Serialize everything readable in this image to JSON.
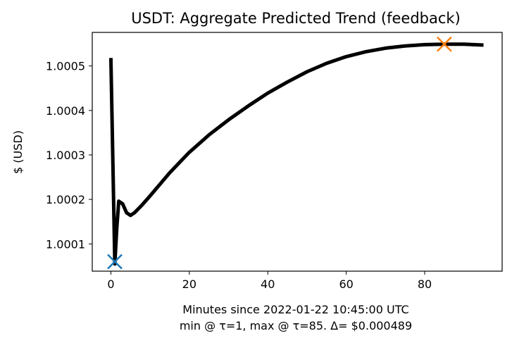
{
  "chart_data": {
    "type": "line",
    "title": "USDT: Aggregate Predicted Trend (feedback)",
    "xlabel": "Minutes since 2022-01-22 10:45:00 UTC",
    "xlabel_sub": "min @ τ=1, max @ τ=85. Δ= $0.000489",
    "ylabel": "$ (USD)",
    "xlim": [
      -4.75,
      99.75
    ],
    "ylim": [
      1.0000387,
      1.0005755
    ],
    "x_ticks": [
      0,
      20,
      40,
      60,
      80
    ],
    "y_ticks": [
      1.0001,
      1.0002,
      1.0003,
      1.0004,
      1.0005
    ],
    "y_tick_labels": [
      "1.0001",
      "1.0002",
      "1.0003",
      "1.0004",
      "1.0005"
    ],
    "grid": false,
    "series": [
      {
        "color": "#000000",
        "x": [
          0,
          1,
          1.5,
          2,
          3,
          4,
          5,
          6,
          8,
          10,
          15,
          20,
          25,
          30,
          35,
          40,
          45,
          50,
          55,
          60,
          65,
          70,
          75,
          80,
          85,
          90,
          95
        ],
        "y": [
          1.000518,
          1.000055,
          1.000135,
          1.000196,
          1.00019,
          1.00017,
          1.000164,
          1.00017,
          1.000188,
          1.000208,
          1.00026,
          1.000306,
          1.000345,
          1.000379,
          1.00041,
          1.000439,
          1.000464,
          1.000487,
          1.000506,
          1.000521,
          1.000532,
          1.00054,
          1.000545,
          1.000548,
          1.000549,
          1.000549,
          1.000547
        ]
      }
    ],
    "markers": [
      {
        "label": "min",
        "x": 1,
        "y": 1.00006,
        "symbol": "x",
        "color": "#1f77b4"
      },
      {
        "label": "max",
        "x": 85,
        "y": 1.000549,
        "symbol": "x",
        "color": "#ff7f0e"
      }
    ]
  }
}
